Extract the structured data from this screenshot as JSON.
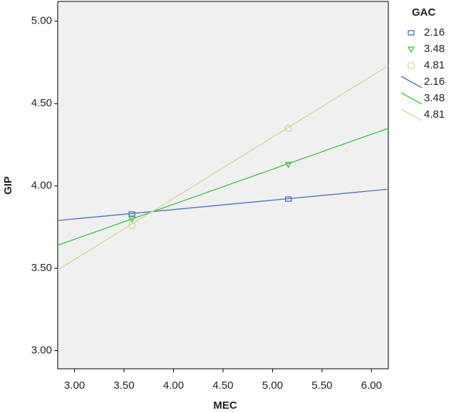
{
  "chart_data": {
    "type": "scatter",
    "x_label": "MEC",
    "y_label": "GIP",
    "legend_title": "GAC",
    "xlim": [
      2.83,
      6.17
    ],
    "ylim": [
      2.89,
      5.12
    ],
    "xticks": [
      {
        "value": 3,
        "label": "3.00"
      },
      {
        "value": 3.5,
        "label": "3.50"
      },
      {
        "value": 4,
        "label": "4.00"
      },
      {
        "value": 4.5,
        "label": "4.50"
      },
      {
        "value": 5,
        "label": "5.00"
      },
      {
        "value": 5.5,
        "label": "5.50"
      },
      {
        "value": 6,
        "label": "6.00"
      }
    ],
    "yticks": [
      {
        "value": 3,
        "label": "3.00"
      },
      {
        "value": 3.5,
        "label": "3.50"
      },
      {
        "value": 4,
        "label": "4.00"
      },
      {
        "value": 4.5,
        "label": "4.50"
      },
      {
        "value": 5,
        "label": "5.00"
      }
    ],
    "series": [
      {
        "name": "2.16",
        "color": "#4a6ec8",
        "marker": "square",
        "x": [
          3.58,
          5.16
        ],
        "values": [
          3.83,
          3.92
        ]
      },
      {
        "name": "3.48",
        "color": "#3cc43c",
        "marker": "triangle",
        "x": [
          3.58,
          5.16
        ],
        "values": [
          3.8,
          4.13
        ]
      },
      {
        "name": "4.81",
        "color": "#d6d69a",
        "marker": "circle",
        "x": [
          3.58,
          5.16
        ],
        "values": [
          3.76,
          4.35
        ]
      }
    ],
    "lines": [
      {
        "name": "2.16",
        "color": "#4a6ec8",
        "x": [
          2.83,
          6.17
        ],
        "values": [
          3.79,
          3.98
        ]
      },
      {
        "name": "3.48",
        "color": "#3cc43c",
        "x": [
          2.83,
          6.17
        ],
        "values": [
          3.64,
          4.35
        ]
      },
      {
        "name": "4.81",
        "color": "#d6d69a",
        "x": [
          2.83,
          6.17
        ],
        "values": [
          3.49,
          4.73
        ]
      }
    ]
  }
}
